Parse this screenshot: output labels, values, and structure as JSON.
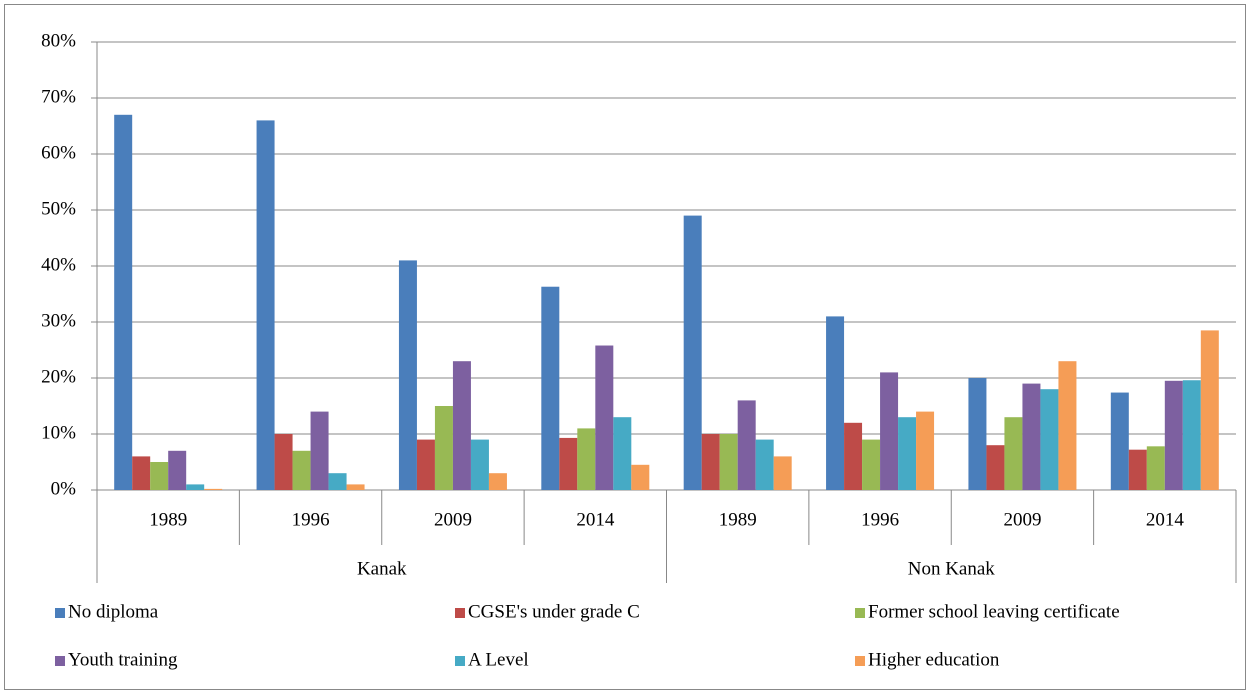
{
  "chart_data": {
    "type": "bar",
    "categories": [
      "1989",
      "1996",
      "2009",
      "2014",
      "1989",
      "1996",
      "2009",
      "2014"
    ],
    "groups": [
      "Kanak",
      "Non Kanak"
    ],
    "ylim": [
      0,
      80
    ],
    "yticks": [
      {
        "value": 0,
        "label": "0%"
      },
      {
        "value": 10,
        "label": "10%"
      },
      {
        "value": 20,
        "label": "20%"
      },
      {
        "value": 30,
        "label": "30%"
      },
      {
        "value": 40,
        "label": "40%"
      },
      {
        "value": 50,
        "label": "50%"
      },
      {
        "value": 60,
        "label": "60%"
      },
      {
        "value": 70,
        "label": "70%"
      },
      {
        "value": 80,
        "label": "80%"
      }
    ],
    "grid": true,
    "legend": "bottom",
    "series": [
      {
        "name": "No diploma",
        "color": "#4a7ebb",
        "values": [
          67,
          66,
          41,
          36.3,
          49,
          31,
          20,
          17.4
        ]
      },
      {
        "name": "CGSE's under grade C",
        "color": "#be4b48",
        "values": [
          6,
          10,
          9,
          9.3,
          10,
          12,
          8,
          7.2
        ]
      },
      {
        "name": "Former school leaving certificate",
        "color": "#98b954",
        "values": [
          5,
          7,
          15,
          11,
          10,
          9,
          13,
          7.8
        ]
      },
      {
        "name": "Youth training",
        "color": "#7d60a0",
        "values": [
          7,
          14,
          23,
          25.8,
          16,
          21,
          19,
          19.5
        ]
      },
      {
        "name": "A Level",
        "color": "#46aac5",
        "values": [
          1,
          3,
          9,
          13,
          9,
          13,
          18,
          19.6
        ]
      },
      {
        "name": "Higher education",
        "color": "#f59d56",
        "values": [
          0.2,
          1,
          3,
          4.5,
          6,
          14,
          23,
          28.5
        ]
      }
    ]
  }
}
